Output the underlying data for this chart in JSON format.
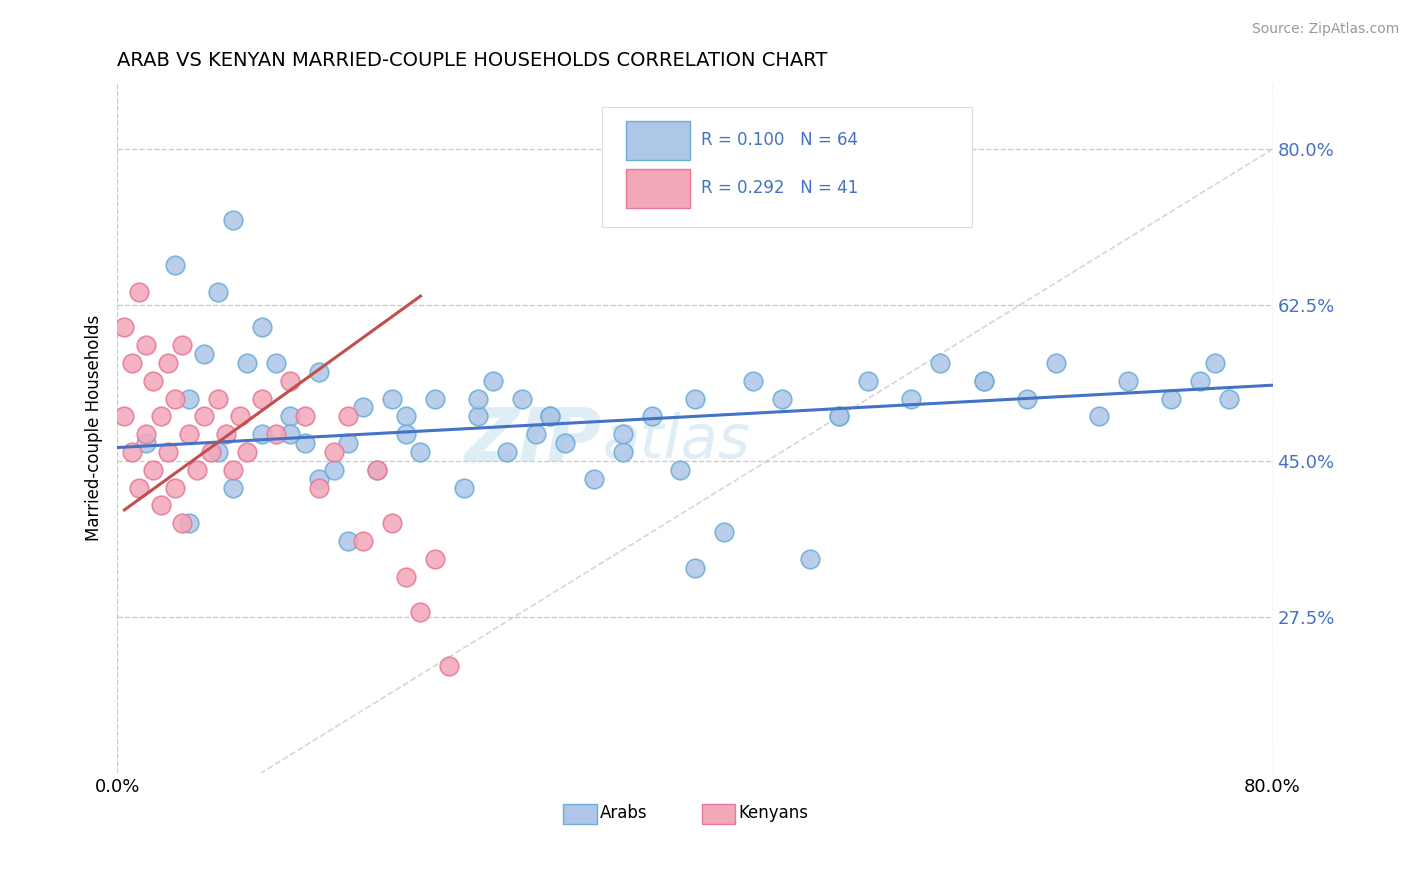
{
  "title": "ARAB VS KENYAN MARRIED-COUPLE HOUSEHOLDS CORRELATION CHART",
  "source": "Source: ZipAtlas.com",
  "ylabel": "Married-couple Households",
  "xlim": [
    0.0,
    0.8
  ],
  "ylim": [
    0.1,
    0.875
  ],
  "yticks": [
    0.275,
    0.45,
    0.625,
    0.8
  ],
  "ytick_labels": [
    "27.5%",
    "45.0%",
    "62.5%",
    "80.0%"
  ],
  "xticks": [
    0.0,
    0.8
  ],
  "xtick_labels": [
    "0.0%",
    "80.0%"
  ],
  "arab_color": "#aec6e8",
  "kenyan_color": "#f4a7b9",
  "arab_edge_color": "#6baed6",
  "kenyan_edge_color": "#e87898",
  "arab_R": 0.1,
  "arab_N": 64,
  "kenyan_R": 0.292,
  "kenyan_N": 41,
  "legend_text_color": "#4472c4",
  "background_color": "#ffffff",
  "grid_color": "#c8c8c8",
  "watermark_zip": "ZIP",
  "watermark_atlas": "atlas",
  "arab_trend_start_y": 0.465,
  "arab_trend_end_y": 0.535,
  "kenyan_trend_start_x": 0.005,
  "kenyan_trend_start_y": 0.395,
  "kenyan_trend_end_x": 0.21,
  "kenyan_trend_end_y": 0.635,
  "arab_x": [
    0.02,
    0.04,
    0.05,
    0.06,
    0.07,
    0.07,
    0.08,
    0.09,
    0.1,
    0.1,
    0.11,
    0.12,
    0.13,
    0.14,
    0.14,
    0.15,
    0.16,
    0.17,
    0.18,
    0.19,
    0.2,
    0.21,
    0.22,
    0.24,
    0.25,
    0.26,
    0.27,
    0.28,
    0.29,
    0.3,
    0.31,
    0.33,
    0.35,
    0.37,
    0.39,
    0.4,
    0.42,
    0.44,
    0.46,
    0.48,
    0.5,
    0.52,
    0.55,
    0.57,
    0.6,
    0.63,
    0.65,
    0.68,
    0.7,
    0.73,
    0.75,
    0.76,
    0.77,
    0.05,
    0.08,
    0.12,
    0.16,
    0.2,
    0.25,
    0.3,
    0.35,
    0.4,
    0.5,
    0.6
  ],
  "arab_y": [
    0.47,
    0.67,
    0.52,
    0.57,
    0.46,
    0.64,
    0.72,
    0.56,
    0.48,
    0.6,
    0.56,
    0.5,
    0.47,
    0.43,
    0.55,
    0.44,
    0.36,
    0.51,
    0.44,
    0.52,
    0.5,
    0.46,
    0.52,
    0.42,
    0.5,
    0.54,
    0.46,
    0.52,
    0.48,
    0.5,
    0.47,
    0.43,
    0.46,
    0.5,
    0.44,
    0.33,
    0.37,
    0.54,
    0.52,
    0.34,
    0.5,
    0.54,
    0.52,
    0.56,
    0.54,
    0.52,
    0.56,
    0.5,
    0.54,
    0.52,
    0.54,
    0.56,
    0.52,
    0.38,
    0.42,
    0.48,
    0.47,
    0.48,
    0.52,
    0.5,
    0.48,
    0.52,
    0.5,
    0.54
  ],
  "kenyan_x": [
    0.005,
    0.005,
    0.01,
    0.01,
    0.015,
    0.015,
    0.02,
    0.02,
    0.025,
    0.025,
    0.03,
    0.03,
    0.035,
    0.035,
    0.04,
    0.04,
    0.045,
    0.045,
    0.05,
    0.055,
    0.06,
    0.065,
    0.07,
    0.075,
    0.08,
    0.085,
    0.09,
    0.1,
    0.11,
    0.12,
    0.13,
    0.14,
    0.15,
    0.16,
    0.17,
    0.18,
    0.19,
    0.2,
    0.21,
    0.22,
    0.23
  ],
  "kenyan_y": [
    0.5,
    0.6,
    0.46,
    0.56,
    0.42,
    0.64,
    0.48,
    0.58,
    0.44,
    0.54,
    0.4,
    0.5,
    0.46,
    0.56,
    0.42,
    0.52,
    0.38,
    0.58,
    0.48,
    0.44,
    0.5,
    0.46,
    0.52,
    0.48,
    0.44,
    0.5,
    0.46,
    0.52,
    0.48,
    0.54,
    0.5,
    0.42,
    0.46,
    0.5,
    0.36,
    0.44,
    0.38,
    0.32,
    0.28,
    0.34,
    0.22
  ]
}
